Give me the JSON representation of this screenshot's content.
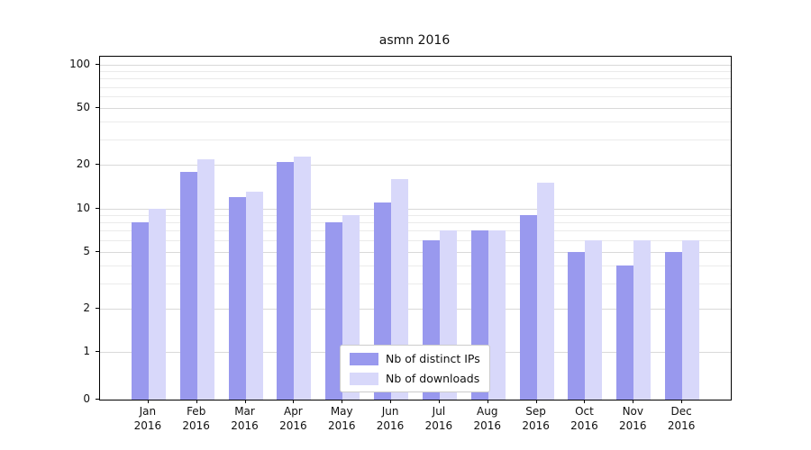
{
  "chart_data": {
    "type": "bar",
    "title": "asmn 2016",
    "categories": [
      "Jan",
      "Feb",
      "Mar",
      "Apr",
      "May",
      "Jun",
      "Jul",
      "Aug",
      "Sep",
      "Oct",
      "Nov",
      "Dec"
    ],
    "year_label": "2016",
    "series": [
      {
        "name": "Nb of distinct IPs",
        "color": "#9999ee",
        "values": [
          8,
          18,
          12,
          21,
          8,
          11,
          6,
          7,
          9,
          5,
          4,
          5
        ]
      },
      {
        "name": "Nb of downloads",
        "color": "#d8d8fa",
        "values": [
          10,
          22,
          13,
          23,
          9,
          16,
          7,
          7,
          15,
          6,
          6,
          6
        ]
      }
    ],
    "yscale": "symlog",
    "y_ticks": [
      0,
      1,
      2,
      5,
      10,
      20,
      50,
      100
    ],
    "y_minor_ticks": [
      3,
      4,
      6,
      7,
      8,
      9,
      30,
      40,
      60,
      70,
      80,
      90
    ],
    "ylim": [
      0,
      113
    ],
    "grid": "on",
    "legend_position": "lower center"
  },
  "colors": {
    "grid_major": "#d9d9d9",
    "grid_minor": "#ebebeb",
    "spine": "#000000",
    "legend_border": "#cccccc",
    "background": "#ffffff"
  }
}
